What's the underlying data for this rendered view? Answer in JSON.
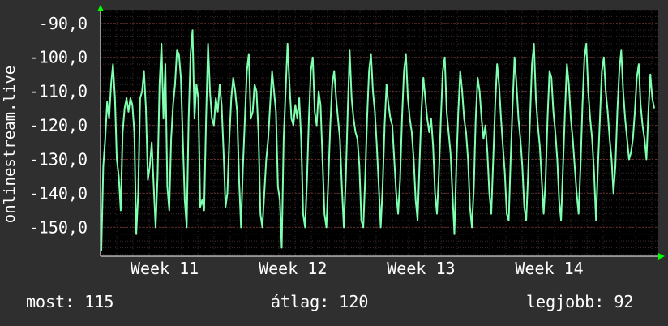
{
  "chart_data": {
    "type": "line",
    "ylabel": "onlinestream.live",
    "y_ticks": [
      "-90,0",
      "-100,0",
      "-110,0",
      "-120,0",
      "-130,0",
      "-140,0",
      "-150,0"
    ],
    "y_tick_values": [
      -90,
      -100,
      -110,
      -120,
      -130,
      -140,
      -150
    ],
    "ylim": [
      -158.5,
      -86
    ],
    "x_ticks": [
      "Week 11",
      "Week 12",
      "Week 13",
      "Week 14"
    ],
    "x_tick_positions": [
      10.5,
      11.5,
      12.5,
      13.5
    ],
    "xlim": [
      10.0,
      14.35
    ],
    "grid": true,
    "colors": {
      "background": "#2f2f2f",
      "plot": "#000000",
      "grid": "#5a2a2a",
      "line": "#7fffb0",
      "arrow": "#00ff00",
      "text": "#ffffff"
    },
    "series": [
      {
        "values": [
          -157,
          -132,
          -124,
          -113,
          -118,
          -108,
          -102,
          -112,
          -130,
          -135,
          -145,
          -122,
          -115,
          -112,
          -116,
          -112,
          -114,
          -122,
          -152,
          -140,
          -112,
          -110,
          -104,
          -115,
          -136,
          -132,
          -125,
          -138,
          -150,
          -135,
          -108,
          -96,
          -118,
          -102,
          -138,
          -145,
          -124,
          -114,
          -108,
          -98,
          -99,
          -106,
          -124,
          -142,
          -150,
          -118,
          -99,
          -92,
          -118,
          -108,
          -112,
          -144,
          -142,
          -145,
          -118,
          -96,
          -110,
          -118,
          -120,
          -112,
          -116,
          -108,
          -114,
          -128,
          -144,
          -140,
          -124,
          -112,
          -106,
          -110,
          -116,
          -136,
          -150,
          -132,
          -118,
          -104,
          -99,
          -118,
          -116,
          -108,
          -110,
          -122,
          -146,
          -150,
          -140,
          -130,
          -124,
          -114,
          -104,
          -110,
          -116,
          -138,
          -142,
          -156,
          -124,
          -110,
          -96,
          -108,
          -118,
          -120,
          -114,
          -118,
          -112,
          -124,
          -146,
          -150,
          -136,
          -118,
          -104,
          -100,
          -116,
          -120,
          -110,
          -114,
          -130,
          -146,
          -150,
          -136,
          -120,
          -108,
          -104,
          -112,
          -118,
          -124,
          -138,
          -150,
          -136,
          -116,
          -98,
          -112,
          -118,
          -122,
          -124,
          -132,
          -148,
          -150,
          -136,
          -118,
          -104,
          -99,
          -110,
          -116,
          -126,
          -138,
          -150,
          -138,
          -120,
          -108,
          -114,
          -118,
          -120,
          -130,
          -140,
          -146,
          -136,
          -118,
          -104,
          -99,
          -112,
          -118,
          -122,
          -130,
          -142,
          -148,
          -132,
          -116,
          -106,
          -112,
          -118,
          -122,
          -118,
          -126,
          -140,
          -146,
          -134,
          -118,
          -104,
          -100,
          -116,
          -122,
          -128,
          -140,
          -152,
          -132,
          -116,
          -104,
          -110,
          -118,
          -122,
          -130,
          -144,
          -150,
          -138,
          -118,
          -106,
          -110,
          -118,
          -124,
          -120,
          -128,
          -140,
          -146,
          -130,
          -114,
          -102,
          -108,
          -118,
          -126,
          -134,
          -146,
          -148,
          -130,
          -114,
          -100,
          -108,
          -118,
          -124,
          -132,
          -144,
          -148,
          -134,
          -118,
          -102,
          -96,
          -112,
          -120,
          -126,
          -136,
          -146,
          -136,
          -118,
          -104,
          -106,
          -116,
          -122,
          -130,
          -142,
          -148,
          -132,
          -116,
          -102,
          -108,
          -118,
          -124,
          -132,
          -140,
          -146,
          -132,
          -114,
          -100,
          -96,
          -110,
          -118,
          -124,
          -134,
          -148,
          -132,
          -118,
          -104,
          -100,
          -110,
          -116,
          -124,
          -130,
          -140,
          -132,
          -116,
          -104,
          -98,
          -110,
          -118,
          -124,
          -130,
          -128,
          -124,
          -116,
          -106,
          -102,
          -114,
          -120,
          -124,
          -130,
          -116,
          -105,
          -112,
          -115
        ]
      }
    ]
  },
  "stats": {
    "current": "most: 115",
    "average": "átlag: 120",
    "best": "legjobb: 92"
  }
}
